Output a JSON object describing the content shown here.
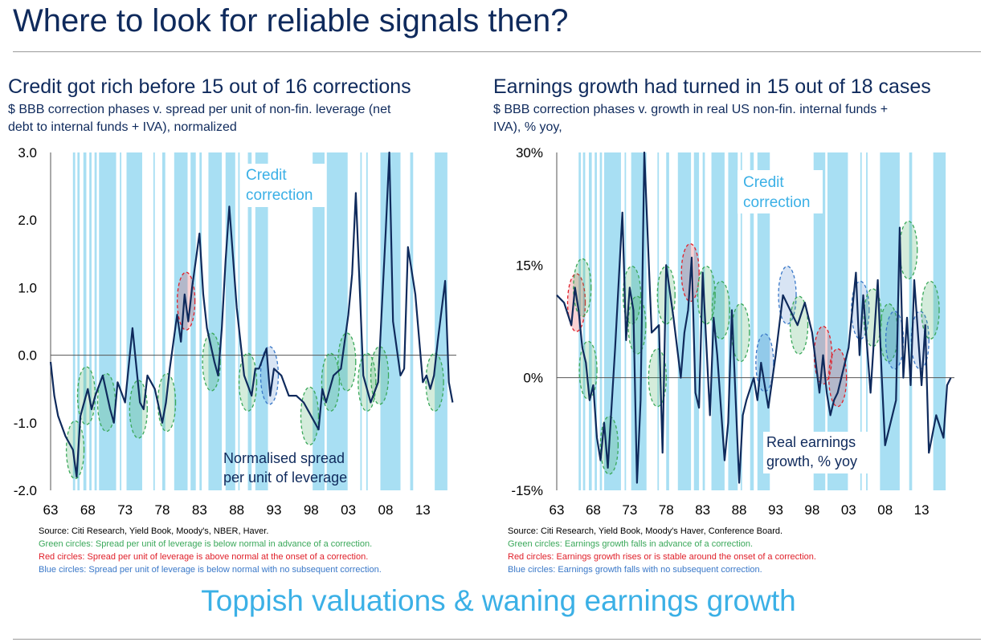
{
  "page": {
    "title": "Where to look for reliable signals then?",
    "bottom_text": "Toppish valuations & waning earnings growth"
  },
  "colors": {
    "navy": "#0f2a5c",
    "band": "#a8dff3",
    "green": "#3aa85a",
    "red": "#e0202a",
    "blue": "#3a78c8",
    "bottom": "#3bb0e6"
  },
  "left": {
    "title": "Credit got rich before 15 out of 16 corrections",
    "subtitle_1": "$ BBB correction phases v. spread per unit of non-fin. leverage (net",
    "subtitle_2": "debt to internal funds + IVA), normalized",
    "source": "Source: Citi Research, Yield Book, Moody's, NBER, Haver.",
    "note_green": "Green circles: Spread per unit of leverage is below normal in advance of a correction.",
    "note_red": "Red circles: Spread per unit of leverage is above normal at the onset of a correction.",
    "note_blue": "Blue circles: Spread per unit of leverage is below normal with no subsequent correction.",
    "annotation_1": "Credit",
    "annotation_2": "correction",
    "series_label_1": "Normalised spread",
    "series_label_2": "per unit of leverage"
  },
  "right": {
    "title": "Earnings growth had turned in 15 out of 18 cases",
    "subtitle_1": "$ BBB correction phases v. growth in real US non-fin. internal funds +",
    "subtitle_2": "IVA), % yoy,",
    "source": "Source: Citi Research, Yield Book, Moody's Haver, Conference Board.",
    "note_green": "Green circles: Earnings growth  falls in advance of a correction.",
    "note_red": "Red circles: Earnings growth rises or is stable around the onset of a correction.",
    "note_blue": "Blue circles: Earnings growth falls with no subsequent correction.",
    "annotation_1": "Credit",
    "annotation_2": "correction",
    "series_label_1": "Real earnings",
    "series_label_2": "growth, % yoy"
  },
  "chart_data": [
    {
      "type": "line",
      "title": "Credit got rich before 15 out of 16 corrections",
      "xlabel": "",
      "ylabel": "",
      "xlim": [
        1963,
        2017.5
      ],
      "ylim": [
        -2.0,
        3.0
      ],
      "yticks": [
        -2.0,
        -1.0,
        0.0,
        1.0,
        2.0,
        3.0
      ],
      "ytick_labels": [
        "-2.0",
        "-1.0",
        "0.0",
        "1.0",
        "2.0",
        "3.0"
      ],
      "xticks": [
        1963,
        1968,
        1973,
        1978,
        1983,
        1988,
        1993,
        1998,
        2003,
        2008,
        2013
      ],
      "xtick_labels": [
        "63",
        "68",
        "73",
        "78",
        "83",
        "88",
        "93",
        "98",
        "03",
        "08",
        "13"
      ],
      "correction_bands": [
        [
          1966.0,
          1966.3
        ],
        [
          1966.6,
          1966.9
        ],
        [
          1967.4,
          1967.8
        ],
        [
          1968.2,
          1968.5
        ],
        [
          1968.9,
          1969.2
        ],
        [
          1969.5,
          1971.8
        ],
        [
          1972.3,
          1972.5
        ],
        [
          1973.2,
          1975.3
        ],
        [
          1976.8,
          1977.0
        ],
        [
          1978.0,
          1978.4
        ],
        [
          1979.6,
          1981.4
        ],
        [
          1981.8,
          1982.5
        ],
        [
          1983.0,
          1983.3
        ],
        [
          1984.2,
          1986.0
        ],
        [
          1986.5,
          1987.8
        ],
        [
          1988.2,
          1988.4
        ],
        [
          1989.5,
          1990.0
        ],
        [
          1990.5,
          1992.2
        ],
        [
          1998.2,
          1999.8
        ],
        [
          2000.1,
          2002.9
        ],
        [
          2004.6,
          2004.8
        ],
        [
          2005.4,
          2005.6
        ],
        [
          2007.3,
          2010.0
        ],
        [
          2011.3,
          2011.7
        ],
        [
          2014.6,
          2016.3
        ]
      ],
      "series": [
        {
          "name": "Normalised spread per unit of leverage",
          "x": [
            1963,
            1963.5,
            1964,
            1965,
            1966,
            1966.5,
            1967,
            1968,
            1968.5,
            1969,
            1970,
            1971,
            1971.5,
            1972,
            1973,
            1974,
            1975,
            1975.5,
            1976,
            1977,
            1978,
            1978.5,
            1979,
            1980,
            1980.5,
            1981,
            1981.5,
            1982,
            1983,
            1983.5,
            1984,
            1985,
            1985.5,
            1986,
            1986.5,
            1987,
            1988,
            1988.5,
            1989,
            1990,
            1990.5,
            1991,
            1992,
            1992.5,
            1993,
            1994,
            1995,
            1996,
            1997,
            1998,
            1999,
            1999.5,
            2000,
            2001,
            2002,
            2003,
            2003.5,
            2004,
            2005,
            2005.5,
            2006,
            2007,
            2007.5,
            2008,
            2008.5,
            2009,
            2010,
            2010.5,
            2011,
            2012,
            2013,
            2013.5,
            2014,
            2014.5,
            2015,
            2016,
            2016.5,
            2017
          ],
          "values": [
            -0.1,
            -0.6,
            -0.9,
            -1.2,
            -1.4,
            -1.8,
            -0.9,
            -0.5,
            -0.8,
            -0.6,
            -0.3,
            -0.8,
            -1.0,
            -0.4,
            -0.7,
            0.4,
            -0.7,
            -0.8,
            -0.3,
            -0.5,
            -1.0,
            -0.7,
            -0.2,
            0.6,
            0.2,
            0.9,
            0.5,
            1.0,
            1.8,
            0.9,
            0.4,
            -0.1,
            -0.3,
            0.4,
            1.4,
            2.2,
            0.7,
            0.2,
            -0.3,
            -0.6,
            -0.2,
            -0.2,
            0.1,
            -0.6,
            -0.2,
            -0.3,
            -0.6,
            -0.6,
            -0.7,
            -0.9,
            -1.1,
            -0.5,
            -0.7,
            -0.3,
            -0.2,
            0.6,
            1.2,
            2.4,
            -0.3,
            -0.5,
            -0.7,
            -0.4,
            0.7,
            1.8,
            3.0,
            0.5,
            -0.3,
            -0.2,
            1.6,
            0.9,
            -0.4,
            -0.3,
            -0.5,
            -0.3,
            0.2,
            1.1,
            -0.4,
            -0.7
          ]
        }
      ],
      "circles": [
        {
          "color": "green",
          "x": 1966.3,
          "y": -1.4
        },
        {
          "color": "green",
          "x": 1967.8,
          "y": -0.6
        },
        {
          "color": "green",
          "x": 1970.5,
          "y": -0.7
        },
        {
          "color": "green",
          "x": 1974.8,
          "y": -0.8
        },
        {
          "color": "green",
          "x": 1978.6,
          "y": -0.7
        },
        {
          "color": "red",
          "x": 1981.2,
          "y": 0.8
        },
        {
          "color": "green",
          "x": 1984.6,
          "y": -0.1
        },
        {
          "color": "green",
          "x": 1989.5,
          "y": -0.4
        },
        {
          "color": "blue",
          "x": 1992.4,
          "y": -0.3
        },
        {
          "color": "green",
          "x": 1997.8,
          "y": -0.9
        },
        {
          "color": "green",
          "x": 2000.6,
          "y": -0.4
        },
        {
          "color": "green",
          "x": 2002.8,
          "y": -0.1
        },
        {
          "color": "green",
          "x": 2005.5,
          "y": -0.4
        },
        {
          "color": "green",
          "x": 2007.2,
          "y": -0.3
        },
        {
          "color": "green",
          "x": 2014.6,
          "y": -0.4
        }
      ]
    },
    {
      "type": "line",
      "title": "Earnings growth had turned in 15 out of 18 cases",
      "xlabel": "",
      "ylabel": "",
      "xlim": [
        1963,
        2017.5
      ],
      "ylim": [
        -15,
        30
      ],
      "yticks": [
        -15,
        0,
        15,
        30
      ],
      "ytick_labels": [
        "-15%",
        "0%",
        "15%",
        "30%"
      ],
      "xticks": [
        1963,
        1968,
        1973,
        1978,
        1983,
        1988,
        1993,
        1998,
        2003,
        2008,
        2013
      ],
      "xtick_labels": [
        "63",
        "68",
        "73",
        "78",
        "83",
        "88",
        "93",
        "98",
        "03",
        "08",
        "13"
      ],
      "correction_bands": [
        [
          1966.0,
          1966.3
        ],
        [
          1966.6,
          1966.9
        ],
        [
          1967.4,
          1967.8
        ],
        [
          1968.2,
          1968.5
        ],
        [
          1968.9,
          1969.2
        ],
        [
          1969.5,
          1971.8
        ],
        [
          1972.3,
          1972.5
        ],
        [
          1973.2,
          1975.3
        ],
        [
          1976.8,
          1977.0
        ],
        [
          1978.0,
          1978.4
        ],
        [
          1979.6,
          1981.4
        ],
        [
          1981.8,
          1982.5
        ],
        [
          1983.0,
          1983.3
        ],
        [
          1984.2,
          1986.0
        ],
        [
          1986.5,
          1987.8
        ],
        [
          1988.2,
          1988.4
        ],
        [
          1989.5,
          1990.0
        ],
        [
          1990.5,
          1992.2
        ],
        [
          1998.2,
          1999.8
        ],
        [
          2000.1,
          2002.9
        ],
        [
          2004.6,
          2004.8
        ],
        [
          2005.4,
          2005.6
        ],
        [
          2007.3,
          2010.0
        ],
        [
          2011.3,
          2011.7
        ],
        [
          2014.6,
          2016.3
        ]
      ],
      "series": [
        {
          "name": "Real earnings growth, % yoy",
          "x": [
            1963,
            1964,
            1965,
            1965.5,
            1966,
            1966.5,
            1967,
            1967.5,
            1968,
            1968.5,
            1969,
            1969.5,
            1970,
            1971,
            1972,
            1972.5,
            1973,
            1973.5,
            1974,
            1974.5,
            1975,
            1976,
            1977,
            1977.5,
            1978,
            1979,
            1980,
            1980.5,
            1981,
            1981.5,
            1982,
            1982.5,
            1983,
            1984,
            1984.5,
            1985,
            1986,
            1986.5,
            1987,
            1988,
            1988.5,
            1989,
            1990,
            1990.5,
            1991,
            1992,
            1993,
            1994,
            1995,
            1996,
            1997,
            1998,
            1999,
            1999.5,
            2000,
            2000.5,
            2001,
            2001.5,
            2002,
            2003,
            2004,
            2004.5,
            2005,
            2006,
            2007,
            2007.5,
            2008,
            2009,
            2009.5,
            2010,
            2010.5,
            2011,
            2011.5,
            2012,
            2013,
            2013.5,
            2014,
            2015,
            2016,
            2016.5,
            2017
          ],
          "values": [
            11,
            10,
            7,
            12,
            9,
            4,
            2,
            -3,
            -1,
            -8,
            -11,
            -6,
            -12,
            4,
            22,
            5,
            12,
            9,
            -14,
            -3,
            30,
            6,
            7,
            -10,
            15,
            8,
            0,
            6,
            9,
            16,
            -2,
            -4,
            14,
            -5,
            8,
            3,
            -11,
            -6,
            9,
            -14,
            -5,
            -3,
            0,
            -3,
            2,
            -4,
            3,
            11,
            9,
            7,
            10,
            6,
            -2,
            3,
            -2,
            -5,
            -3,
            -2,
            0,
            4,
            14,
            3,
            11,
            -2,
            13,
            1,
            -9,
            -5,
            -3,
            20,
            0,
            8,
            -1,
            13,
            -1,
            7,
            -10,
            -5,
            -8,
            -1,
            0
          ]
        }
      ],
      "circles": [
        {
          "color": "red",
          "x": 1965.7,
          "y": 10
        },
        {
          "color": "green",
          "x": 1966.5,
          "y": 12
        },
        {
          "color": "green",
          "x": 1967.3,
          "y": 1
        },
        {
          "color": "green",
          "x": 1970.2,
          "y": -9
        },
        {
          "color": "green",
          "x": 1973.3,
          "y": 11
        },
        {
          "color": "green",
          "x": 1974.0,
          "y": 7
        },
        {
          "color": "green",
          "x": 1976.8,
          "y": 0
        },
        {
          "color": "green",
          "x": 1978.0,
          "y": 11
        },
        {
          "color": "red",
          "x": 1981.3,
          "y": 14
        },
        {
          "color": "green",
          "x": 1983.5,
          "y": 11
        },
        {
          "color": "green",
          "x": 1985.5,
          "y": 9
        },
        {
          "color": "green",
          "x": 1988.2,
          "y": 6
        },
        {
          "color": "blue",
          "x": 1991.5,
          "y": 2
        },
        {
          "color": "blue",
          "x": 1994.6,
          "y": 11
        },
        {
          "color": "green",
          "x": 1996.2,
          "y": 7
        },
        {
          "color": "red",
          "x": 1999.5,
          "y": 3
        },
        {
          "color": "red",
          "x": 2001.5,
          "y": 0
        },
        {
          "color": "blue",
          "x": 2004.6,
          "y": 9
        },
        {
          "color": "green",
          "x": 2006.3,
          "y": 8
        },
        {
          "color": "green",
          "x": 2008.5,
          "y": 6
        },
        {
          "color": "blue",
          "x": 2009.3,
          "y": 5
        },
        {
          "color": "green",
          "x": 2011.2,
          "y": 17
        },
        {
          "color": "blue",
          "x": 2012.8,
          "y": 5
        },
        {
          "color": "green",
          "x": 2014.2,
          "y": 9
        }
      ]
    }
  ]
}
